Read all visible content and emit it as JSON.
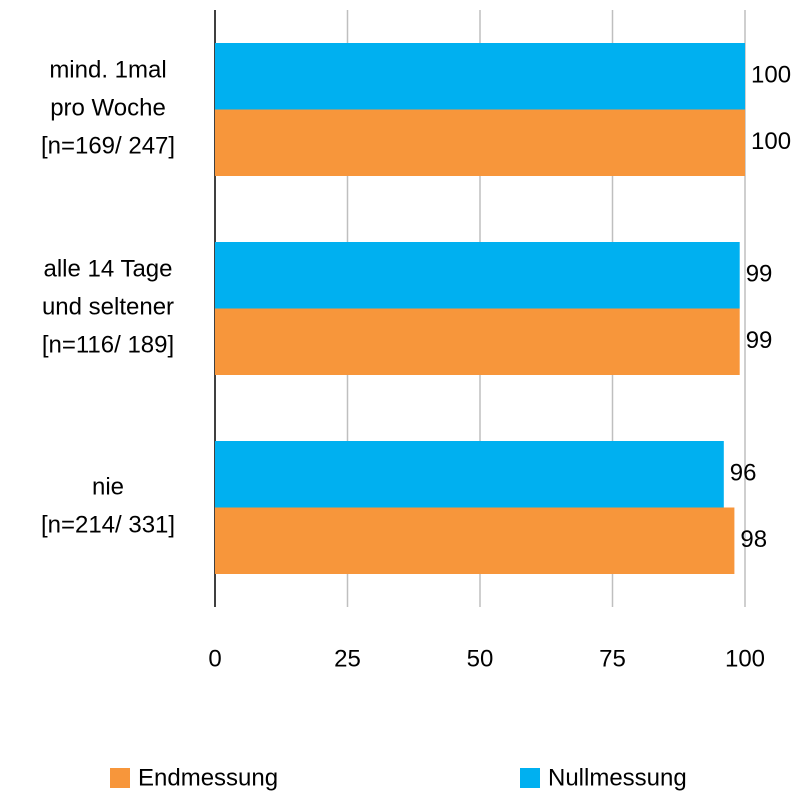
{
  "chart_data": {
    "type": "barh",
    "categories": [
      "mind. 1mal\npro Woche\n[n=169/ 247]",
      "alle 14 Tage\nund seltener\n[n=116/ 189]",
      "nie\n[n=214/ 331]"
    ],
    "series": [
      {
        "name": "Endmessung",
        "color": "#f7963b",
        "values": [
          100,
          99,
          98
        ]
      },
      {
        "name": "Nullmessung",
        "color": "#00b0f0",
        "values": [
          100,
          99,
          96
        ]
      }
    ],
    "xlim": [
      0,
      100
    ],
    "xticks": [
      0,
      25,
      50,
      75,
      100
    ],
    "grid": true
  }
}
